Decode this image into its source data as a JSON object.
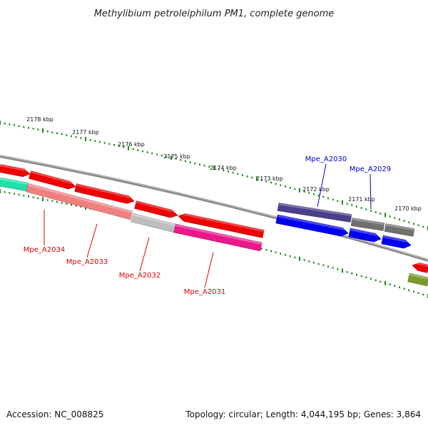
{
  "title": "Methylibium petroleiphilum PM1, complete genome",
  "footer": {
    "accession": "Accession: NC_008825",
    "summary": "Topology: circular; Length: 4,044,195 bp; Genes: 3,864"
  },
  "ticks": [
    {
      "label": "2178 kbp"
    },
    {
      "label": "2177 kbp"
    },
    {
      "label": "2176 kbp"
    },
    {
      "label": "2175 kbp"
    },
    {
      "label": "2174 kbp"
    },
    {
      "label": "2173 kbp"
    },
    {
      "label": "2172 kbp"
    },
    {
      "label": "2171 kbp"
    },
    {
      "label": "2170 kbp"
    }
  ],
  "gene_labels": [
    {
      "text": "Mpe_A2034",
      "strand": "reverse"
    },
    {
      "text": "Mpe_A2033",
      "strand": "reverse"
    },
    {
      "text": "Mpe_A2032",
      "strand": "reverse"
    },
    {
      "text": "Mpe_A2031",
      "strand": "reverse"
    },
    {
      "text": "Mpe_A2030",
      "strand": "forward"
    },
    {
      "text": "Mpe_A2029",
      "strand": "forward"
    }
  ],
  "colors": {
    "reverse_label": "#dd0000",
    "forward_label": "#0000cc",
    "tick_mark": "#1b8a1b",
    "backbone": "#808080",
    "red_feature": "#ee0000",
    "blue_feature": "#0000ee",
    "navy_feature": "#4a3f8a",
    "gray_feature": "#707070",
    "pink_feature": "#f08080",
    "light_gray_feature": "#bdbdbd",
    "magenta_feature": "#e8198b",
    "teal_feature": "#22e0a8",
    "olive_feature": "#7a9a2a"
  }
}
